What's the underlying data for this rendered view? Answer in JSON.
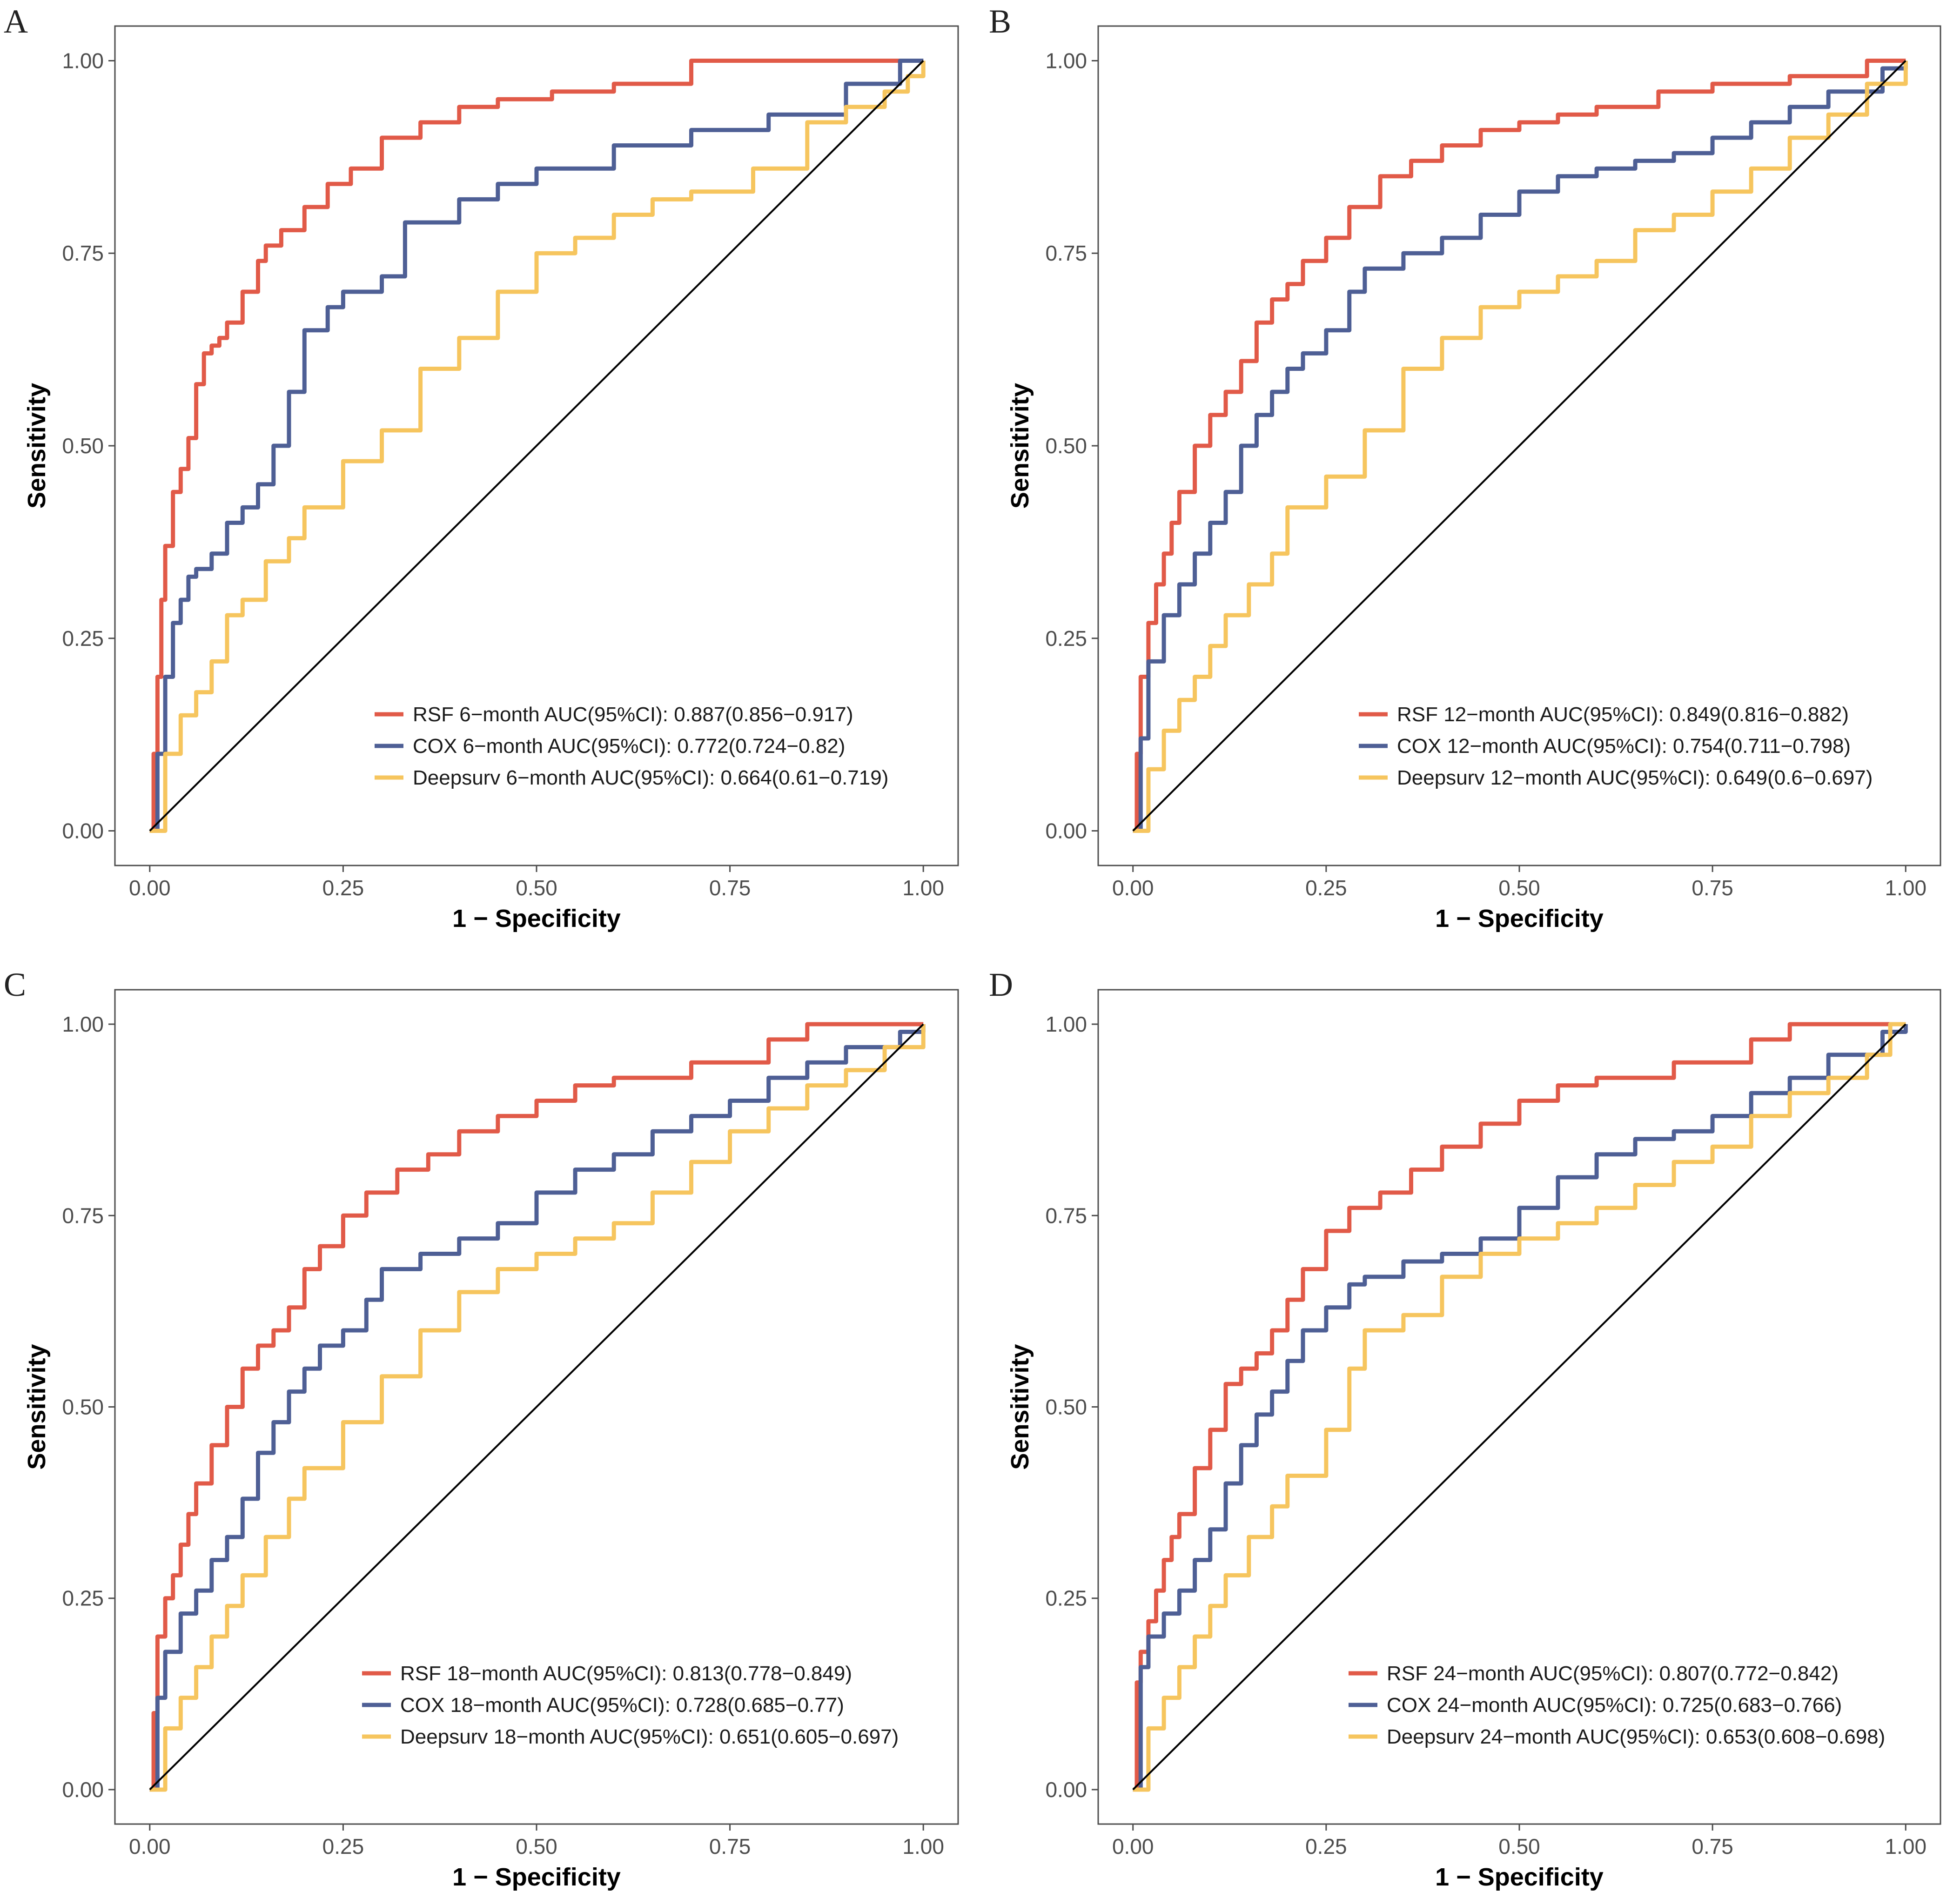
{
  "colors": {
    "rsf": "#E15A48",
    "cox": "#4E5F95",
    "deepsurv": "#F6C55E",
    "diagonal": "#000000",
    "frame": "#4d4d4d"
  },
  "axes": {
    "xlabel": "1 − Specificity",
    "ylabel": "Sensitivity",
    "xlim": [
      0,
      1
    ],
    "ylim": [
      0,
      1
    ],
    "ticks": [
      "0.00",
      "0.25",
      "0.50",
      "0.75",
      "1.00"
    ],
    "grid": false
  },
  "chart_data": [
    {
      "panel": "A",
      "type": "line",
      "title": "",
      "legend_position": "bottom-right",
      "series": [
        {
          "key": "rsf",
          "name": "RSF 6−month AUC(95%CI): 0.887(0.856−0.917)",
          "auc": 0.887,
          "x": [
            0,
            0.005,
            0.01,
            0.015,
            0.02,
            0.03,
            0.04,
            0.05,
            0.06,
            0.07,
            0.08,
            0.09,
            0.1,
            0.12,
            0.14,
            0.15,
            0.17,
            0.2,
            0.23,
            0.26,
            0.3,
            0.35,
            0.4,
            0.45,
            0.52,
            0.6,
            0.7,
            1.0
          ],
          "y": [
            0,
            0.1,
            0.2,
            0.3,
            0.37,
            0.44,
            0.47,
            0.51,
            0.58,
            0.62,
            0.63,
            0.64,
            0.66,
            0.7,
            0.74,
            0.76,
            0.78,
            0.81,
            0.84,
            0.86,
            0.9,
            0.92,
            0.94,
            0.95,
            0.96,
            0.97,
            1.0,
            1.0
          ]
        },
        {
          "key": "cox",
          "name": "COX 6−month AUC(95%CI): 0.772(0.724−0.82)",
          "auc": 0.772,
          "x": [
            0,
            0.01,
            0.02,
            0.03,
            0.04,
            0.05,
            0.06,
            0.08,
            0.1,
            0.12,
            0.14,
            0.16,
            0.18,
            0.2,
            0.23,
            0.25,
            0.3,
            0.33,
            0.35,
            0.4,
            0.45,
            0.5,
            0.6,
            0.7,
            0.8,
            0.9,
            0.97,
            1.0
          ],
          "y": [
            0,
            0.1,
            0.2,
            0.27,
            0.3,
            0.33,
            0.34,
            0.36,
            0.4,
            0.42,
            0.45,
            0.5,
            0.57,
            0.65,
            0.68,
            0.7,
            0.72,
            0.79,
            0.79,
            0.82,
            0.84,
            0.86,
            0.89,
            0.91,
            0.93,
            0.97,
            1.0,
            1.0
          ]
        },
        {
          "key": "deepsurv",
          "name": "Deepsurv 6−month AUC(95%CI): 0.664(0.61−0.719)",
          "auc": 0.664,
          "x": [
            0,
            0.02,
            0.04,
            0.06,
            0.08,
            0.1,
            0.12,
            0.15,
            0.18,
            0.2,
            0.25,
            0.3,
            0.35,
            0.4,
            0.45,
            0.5,
            0.55,
            0.6,
            0.65,
            0.7,
            0.78,
            0.85,
            0.9,
            0.95,
            0.98,
            1.0
          ],
          "y": [
            0,
            0.1,
            0.15,
            0.18,
            0.22,
            0.28,
            0.3,
            0.35,
            0.38,
            0.42,
            0.48,
            0.52,
            0.6,
            0.64,
            0.7,
            0.75,
            0.77,
            0.8,
            0.82,
            0.83,
            0.86,
            0.92,
            0.94,
            0.96,
            0.98,
            1.0
          ]
        },
        {
          "key": "diagonal",
          "name": "",
          "x": [
            0,
            1
          ],
          "y": [
            0,
            1
          ]
        }
      ]
    },
    {
      "panel": "B",
      "type": "line",
      "title": "",
      "legend_position": "bottom-right",
      "series": [
        {
          "key": "rsf",
          "name": "RSF 12−month AUC(95%CI): 0.849(0.816−0.882)",
          "auc": 0.849,
          "x": [
            0,
            0.005,
            0.01,
            0.02,
            0.03,
            0.04,
            0.05,
            0.06,
            0.08,
            0.1,
            0.12,
            0.14,
            0.16,
            0.18,
            0.2,
            0.22,
            0.25,
            0.28,
            0.32,
            0.36,
            0.4,
            0.45,
            0.5,
            0.55,
            0.6,
            0.68,
            0.75,
            0.85,
            0.95,
            1.0
          ],
          "y": [
            0,
            0.1,
            0.2,
            0.27,
            0.32,
            0.36,
            0.4,
            0.44,
            0.5,
            0.54,
            0.57,
            0.61,
            0.66,
            0.69,
            0.71,
            0.74,
            0.77,
            0.81,
            0.85,
            0.87,
            0.89,
            0.91,
            0.92,
            0.93,
            0.94,
            0.96,
            0.97,
            0.98,
            1.0,
            1.0
          ]
        },
        {
          "key": "cox",
          "name": "COX 12−month AUC(95%CI): 0.754(0.711−0.798)",
          "auc": 0.754,
          "x": [
            0,
            0.01,
            0.02,
            0.04,
            0.06,
            0.08,
            0.1,
            0.12,
            0.14,
            0.16,
            0.18,
            0.2,
            0.22,
            0.25,
            0.28,
            0.3,
            0.35,
            0.4,
            0.45,
            0.5,
            0.55,
            0.6,
            0.65,
            0.7,
            0.75,
            0.8,
            0.85,
            0.9,
            0.97,
            1.0
          ],
          "y": [
            0,
            0.12,
            0.22,
            0.28,
            0.32,
            0.36,
            0.4,
            0.44,
            0.5,
            0.54,
            0.57,
            0.6,
            0.62,
            0.65,
            0.7,
            0.73,
            0.75,
            0.77,
            0.8,
            0.83,
            0.85,
            0.86,
            0.87,
            0.88,
            0.9,
            0.92,
            0.94,
            0.96,
            0.99,
            1.0
          ]
        },
        {
          "key": "deepsurv",
          "name": "Deepsurv 12−month AUC(95%CI): 0.649(0.6−0.697)",
          "auc": 0.649,
          "x": [
            0,
            0.02,
            0.04,
            0.06,
            0.08,
            0.1,
            0.12,
            0.15,
            0.18,
            0.2,
            0.25,
            0.3,
            0.35,
            0.4,
            0.45,
            0.5,
            0.55,
            0.6,
            0.65,
            0.7,
            0.75,
            0.8,
            0.85,
            0.9,
            0.95,
            1.0
          ],
          "y": [
            0,
            0.08,
            0.13,
            0.17,
            0.2,
            0.24,
            0.28,
            0.32,
            0.36,
            0.42,
            0.46,
            0.52,
            0.6,
            0.64,
            0.68,
            0.7,
            0.72,
            0.74,
            0.78,
            0.8,
            0.83,
            0.86,
            0.9,
            0.93,
            0.97,
            1.0
          ]
        },
        {
          "key": "diagonal",
          "name": "",
          "x": [
            0,
            1
          ],
          "y": [
            0,
            1
          ]
        }
      ]
    },
    {
      "panel": "C",
      "type": "line",
      "title": "",
      "legend_position": "bottom-right",
      "series": [
        {
          "key": "rsf",
          "name": "RSF 18−month AUC(95%CI): 0.813(0.778−0.849)",
          "auc": 0.813,
          "x": [
            0,
            0.005,
            0.01,
            0.02,
            0.03,
            0.04,
            0.05,
            0.06,
            0.08,
            0.1,
            0.12,
            0.14,
            0.16,
            0.18,
            0.2,
            0.22,
            0.25,
            0.28,
            0.32,
            0.36,
            0.4,
            0.45,
            0.5,
            0.55,
            0.6,
            0.7,
            0.8,
            0.85,
            1.0
          ],
          "y": [
            0,
            0.1,
            0.2,
            0.25,
            0.28,
            0.32,
            0.36,
            0.4,
            0.45,
            0.5,
            0.55,
            0.58,
            0.6,
            0.63,
            0.68,
            0.71,
            0.75,
            0.78,
            0.81,
            0.83,
            0.86,
            0.88,
            0.9,
            0.92,
            0.93,
            0.95,
            0.98,
            1.0,
            1.0
          ]
        },
        {
          "key": "cox",
          "name": "COX 18−month AUC(95%CI): 0.728(0.685−0.77)",
          "auc": 0.728,
          "x": [
            0,
            0.01,
            0.02,
            0.04,
            0.06,
            0.08,
            0.1,
            0.12,
            0.14,
            0.16,
            0.18,
            0.2,
            0.22,
            0.25,
            0.28,
            0.3,
            0.35,
            0.4,
            0.45,
            0.5,
            0.55,
            0.6,
            0.65,
            0.7,
            0.75,
            0.8,
            0.85,
            0.9,
            0.97,
            1.0
          ],
          "y": [
            0,
            0.12,
            0.18,
            0.23,
            0.26,
            0.3,
            0.33,
            0.38,
            0.44,
            0.48,
            0.52,
            0.55,
            0.58,
            0.6,
            0.64,
            0.68,
            0.7,
            0.72,
            0.74,
            0.78,
            0.81,
            0.83,
            0.86,
            0.88,
            0.9,
            0.93,
            0.95,
            0.97,
            0.99,
            1.0
          ]
        },
        {
          "key": "deepsurv",
          "name": "Deepsurv 18−month AUC(95%CI): 0.651(0.605−0.697)",
          "auc": 0.651,
          "x": [
            0,
            0.02,
            0.04,
            0.06,
            0.08,
            0.1,
            0.12,
            0.15,
            0.18,
            0.2,
            0.25,
            0.3,
            0.35,
            0.4,
            0.45,
            0.5,
            0.55,
            0.6,
            0.65,
            0.7,
            0.75,
            0.8,
            0.85,
            0.9,
            0.95,
            1.0
          ],
          "y": [
            0,
            0.08,
            0.12,
            0.16,
            0.2,
            0.24,
            0.28,
            0.33,
            0.38,
            0.42,
            0.48,
            0.54,
            0.6,
            0.65,
            0.68,
            0.7,
            0.72,
            0.74,
            0.78,
            0.82,
            0.86,
            0.89,
            0.92,
            0.94,
            0.97,
            1.0
          ]
        },
        {
          "key": "diagonal",
          "name": "",
          "x": [
            0,
            1
          ],
          "y": [
            0,
            1
          ]
        }
      ]
    },
    {
      "panel": "D",
      "type": "line",
      "title": "",
      "legend_position": "bottom-right",
      "series": [
        {
          "key": "rsf",
          "name": "RSF 24−month AUC(95%CI): 0.807(0.772−0.842)",
          "auc": 0.807,
          "x": [
            0,
            0.005,
            0.01,
            0.02,
            0.03,
            0.04,
            0.05,
            0.06,
            0.08,
            0.1,
            0.12,
            0.14,
            0.16,
            0.18,
            0.2,
            0.22,
            0.25,
            0.28,
            0.32,
            0.36,
            0.4,
            0.45,
            0.5,
            0.55,
            0.6,
            0.7,
            0.8,
            0.85,
            1.0
          ],
          "y": [
            0,
            0.14,
            0.18,
            0.22,
            0.26,
            0.3,
            0.33,
            0.36,
            0.42,
            0.47,
            0.53,
            0.55,
            0.57,
            0.6,
            0.64,
            0.68,
            0.73,
            0.76,
            0.78,
            0.81,
            0.84,
            0.87,
            0.9,
            0.92,
            0.93,
            0.95,
            0.98,
            1.0,
            1.0
          ]
        },
        {
          "key": "cox",
          "name": "COX 24−month AUC(95%CI): 0.725(0.683−0.766)",
          "auc": 0.725,
          "x": [
            0,
            0.01,
            0.02,
            0.04,
            0.06,
            0.08,
            0.1,
            0.12,
            0.14,
            0.16,
            0.18,
            0.2,
            0.22,
            0.25,
            0.28,
            0.3,
            0.35,
            0.4,
            0.45,
            0.5,
            0.55,
            0.6,
            0.65,
            0.7,
            0.75,
            0.8,
            0.85,
            0.9,
            0.97,
            1.0
          ],
          "y": [
            0,
            0.16,
            0.2,
            0.23,
            0.26,
            0.3,
            0.34,
            0.4,
            0.45,
            0.49,
            0.52,
            0.56,
            0.6,
            0.63,
            0.66,
            0.67,
            0.69,
            0.7,
            0.72,
            0.76,
            0.8,
            0.83,
            0.85,
            0.86,
            0.88,
            0.91,
            0.93,
            0.96,
            0.99,
            1.0
          ]
        },
        {
          "key": "deepsurv",
          "name": "Deepsurv 24−month AUC(95%CI): 0.653(0.608−0.698)",
          "auc": 0.653,
          "x": [
            0,
            0.02,
            0.04,
            0.06,
            0.08,
            0.1,
            0.12,
            0.15,
            0.18,
            0.2,
            0.25,
            0.28,
            0.3,
            0.35,
            0.4,
            0.45,
            0.5,
            0.55,
            0.6,
            0.65,
            0.7,
            0.75,
            0.8,
            0.85,
            0.9,
            0.95,
            0.98,
            1.0
          ],
          "y": [
            0,
            0.08,
            0.12,
            0.16,
            0.2,
            0.24,
            0.28,
            0.33,
            0.37,
            0.41,
            0.47,
            0.55,
            0.6,
            0.62,
            0.67,
            0.7,
            0.72,
            0.74,
            0.76,
            0.79,
            0.82,
            0.84,
            0.88,
            0.91,
            0.93,
            0.96,
            1.0,
            1.0
          ]
        },
        {
          "key": "diagonal",
          "name": "",
          "x": [
            0,
            1
          ],
          "y": [
            0,
            1
          ]
        }
      ]
    }
  ]
}
